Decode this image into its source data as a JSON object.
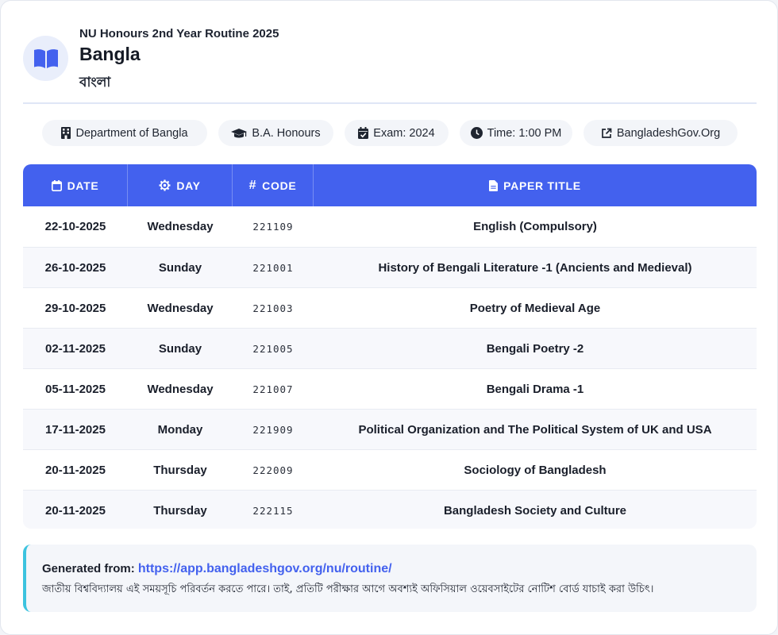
{
  "header": {
    "supertitle": "NU Honours 2nd Year Routine 2025",
    "title": "Bangla",
    "subtitle": "বাংলা",
    "icon": "book-icon"
  },
  "chips": [
    {
      "label": "Department of Bangla",
      "icon": "building-icon"
    },
    {
      "label": "B.A. Honours",
      "icon": "graduation-cap-icon"
    },
    {
      "label": "Exam: 2024",
      "icon": "calendar-check-icon"
    },
    {
      "label": "Time: 1:00 PM",
      "icon": "clock-icon"
    },
    {
      "label": "BangladeshGov.Org",
      "icon": "external-link-icon"
    }
  ],
  "table": {
    "headers": {
      "date": "DATE",
      "day": "DAY",
      "code": "CODE",
      "title": "PAPER TITLE"
    },
    "rows": [
      {
        "date": "22-10-2025",
        "day": "Wednesday",
        "code": "221109",
        "title": "English (Compulsory)"
      },
      {
        "date": "26-10-2025",
        "day": "Sunday",
        "code": "221001",
        "title": "History of Bengali Literature -1 (Ancients and Medieval)"
      },
      {
        "date": "29-10-2025",
        "day": "Wednesday",
        "code": "221003",
        "title": "Poetry of Medieval Age"
      },
      {
        "date": "02-11-2025",
        "day": "Sunday",
        "code": "221005",
        "title": "Bengali Poetry -2"
      },
      {
        "date": "05-11-2025",
        "day": "Wednesday",
        "code": "221007",
        "title": "Bengali Drama -1"
      },
      {
        "date": "17-11-2025",
        "day": "Monday",
        "code": "221909",
        "title": "Political Organization and The Political System of UK and USA"
      },
      {
        "date": "20-11-2025",
        "day": "Thursday",
        "code": "222009",
        "title": "Sociology of Bangladesh"
      },
      {
        "date": "20-11-2025",
        "day": "Thursday",
        "code": "222115",
        "title": "Bangladesh Society and Culture"
      }
    ]
  },
  "note": {
    "label": "Generated from:",
    "url": "https://app.bangladeshgov.org/nu/routine/",
    "text": "জাতীয় বিশ্ববিদ্যালয় এই সময়সূচি পরিবর্তন করতে পারে। তাই, প্রতিটি পরীক্ষার আগে অবশ্যই অফিসিয়াল ওয়েবসাইটের নোটিশ বোর্ড যাচাই করা উচিৎ।"
  },
  "colors": {
    "accent": "#4361ee",
    "note_border": "#3cc3df",
    "row_alt": "#f7f8fc",
    "chip_bg": "#f3f5f9"
  }
}
